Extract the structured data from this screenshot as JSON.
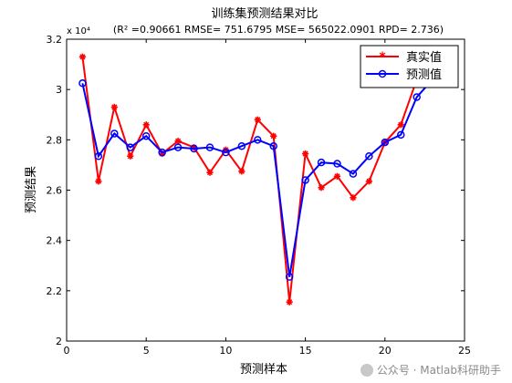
{
  "chart_data": {
    "type": "line",
    "title": "训练集预测结果对比",
    "subtitle": "(R² =0.90661 RMSE= 751.6795 MSE= 565022.0901 RPD= 2.736)",
    "xlabel": "预测样本",
    "ylabel": "预测结果",
    "y_exponent_label": "x 10⁴",
    "xlim": [
      0,
      25
    ],
    "ylim": [
      2.0,
      3.2
    ],
    "x_ticks": [
      0,
      5,
      10,
      15,
      20,
      25
    ],
    "y_ticks": [
      2,
      2.2,
      2.4,
      2.6,
      2.8,
      3,
      3.2
    ],
    "x_tick_labels": [
      "0",
      "5",
      "10",
      "15",
      "20",
      "25"
    ],
    "y_tick_labels": [
      "2",
      "2.2",
      "2.4",
      "2.6",
      "2.8",
      "3",
      "3.2"
    ],
    "grid": false,
    "legend_position": "top-right",
    "x": [
      1,
      2,
      3,
      4,
      5,
      6,
      7,
      8,
      9,
      10,
      11,
      12,
      13,
      14,
      15,
      16,
      17,
      18,
      19,
      20,
      21,
      22,
      23
    ],
    "series": [
      {
        "name": "真实值",
        "color": "#ff0000",
        "marker": "star",
        "values": [
          3.13,
          2.635,
          2.93,
          2.735,
          2.86,
          2.745,
          2.795,
          2.77,
          2.67,
          2.76,
          2.675,
          2.88,
          2.815,
          2.155,
          2.745,
          2.61,
          2.655,
          2.57,
          2.635,
          2.79,
          2.86,
          3.04,
          3.08
        ]
      },
      {
        "name": "预测值",
        "color": "#0000ff",
        "marker": "circle",
        "values": [
          3.025,
          2.735,
          2.825,
          2.77,
          2.815,
          2.75,
          2.77,
          2.765,
          2.77,
          2.75,
          2.775,
          2.8,
          2.775,
          2.255,
          2.64,
          2.71,
          2.705,
          2.665,
          2.735,
          2.79,
          2.82,
          2.97,
          3.04
        ]
      }
    ]
  },
  "watermark": "公众号 · Matlab科研助手"
}
